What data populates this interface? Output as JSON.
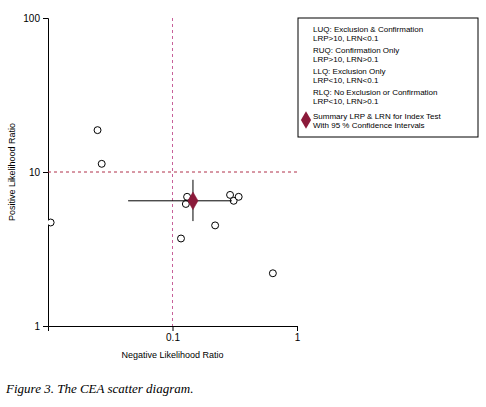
{
  "chart_data": {
    "type": "scatter",
    "caption": "Figure 3. The CEA scatter diagram.",
    "x_label": "Negative Likelihood Ratio",
    "y_label": "Positive Likelihood Ratio",
    "log": true,
    "xlim": [
      0.01,
      1
    ],
    "ylim": [
      1,
      100
    ],
    "xticks": [
      0.1,
      1
    ],
    "yticks": [
      1,
      10,
      100
    ],
    "legend": "top-right",
    "reference_lines": [
      {
        "axis": "x",
        "value": 0.1,
        "color": "#c8619a"
      },
      {
        "axis": "y",
        "value": 10,
        "color": "#b0304a"
      }
    ],
    "quadrants": [
      {
        "label": "LUQ: Exclusion & Confirmation",
        "rule": "LRP>10, LRN<0.1"
      },
      {
        "label": "RUQ: Confirmation Only",
        "rule": "LRP>10, LRN>0.1"
      },
      {
        "label": "LLQ: Exclusion Only",
        "rule": "LRP<10, LRN<0.1"
      },
      {
        "label": "RLQ: No Exclusion or Confirmation",
        "rule": "LRP<10, LRN>0.1"
      }
    ],
    "series": [
      {
        "type": "scatter",
        "marker": "circle",
        "color": "#000000",
        "x": [
          0.0105,
          0.025,
          0.027,
          0.117,
          0.128,
          0.131,
          0.22,
          0.29,
          0.31,
          0.34,
          0.64
        ],
        "values": [
          4.7,
          18.7,
          11.3,
          3.7,
          6.2,
          6.9,
          4.5,
          7.1,
          6.5,
          6.9,
          2.2
        ]
      },
      {
        "type": "summary",
        "marker": "diamond",
        "color": "#8b1a3a",
        "name": "Summary LRP & LRN for Index Test",
        "ci_label": "With 95 % Confidence Intervals",
        "x": [
          0.146
        ],
        "values": [
          6.5
        ],
        "x_ci": [
          0.044,
          0.3
        ],
        "y_ci": [
          4.8,
          8.9
        ]
      }
    ]
  }
}
